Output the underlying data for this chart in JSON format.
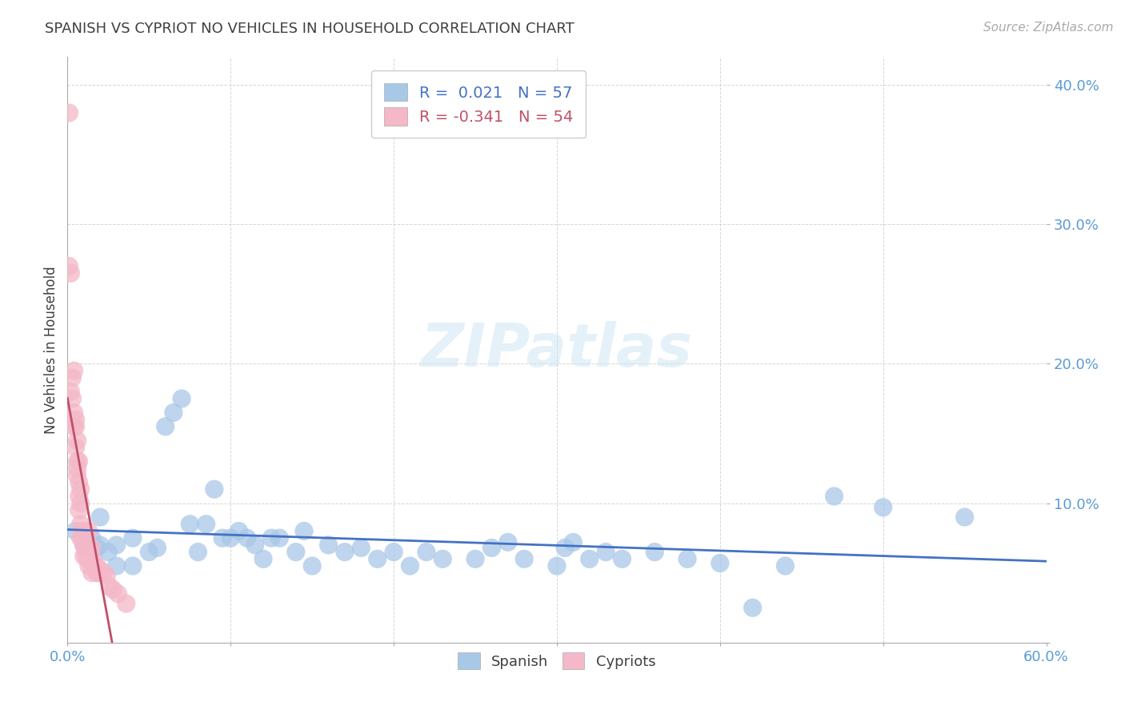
{
  "title": "SPANISH VS CYPRIOT NO VEHICLES IN HOUSEHOLD CORRELATION CHART",
  "source": "Source: ZipAtlas.com",
  "ylabel_label": "No Vehicles in Household",
  "xlim": [
    0.0,
    0.6
  ],
  "ylim": [
    0.0,
    0.42
  ],
  "xticks": [
    0.0,
    0.6
  ],
  "yticks": [
    0.1,
    0.2,
    0.3,
    0.4
  ],
  "xtick_labels": [
    "0.0%",
    "60.0%"
  ],
  "ytick_labels": [
    "10.0%",
    "20.0%",
    "30.0%",
    "40.0%"
  ],
  "legend_r_spanish": "R =  0.021",
  "legend_n_spanish": "N = 57",
  "legend_r_cypriot": "R = -0.341",
  "legend_n_cypriot": "N = 54",
  "spanish_color": "#a8c8e8",
  "cypriot_color": "#f4b8c8",
  "spanish_line_color": "#4472c4",
  "cypriot_line_color": "#c0506a",
  "background_color": "#ffffff",
  "grid_color": "#cccccc",
  "title_color": "#404040",
  "axis_label_color": "#404040",
  "tick_color": "#5b9bd5",
  "watermark": "ZIPatlas",
  "spanish_x": [
    0.005,
    0.01,
    0.015,
    0.018,
    0.02,
    0.02,
    0.025,
    0.03,
    0.03,
    0.04,
    0.04,
    0.05,
    0.055,
    0.06,
    0.065,
    0.07,
    0.075,
    0.08,
    0.085,
    0.09,
    0.095,
    0.1,
    0.105,
    0.11,
    0.115,
    0.12,
    0.125,
    0.13,
    0.14,
    0.145,
    0.15,
    0.16,
    0.17,
    0.18,
    0.19,
    0.2,
    0.21,
    0.22,
    0.23,
    0.25,
    0.26,
    0.27,
    0.28,
    0.3,
    0.305,
    0.31,
    0.32,
    0.33,
    0.34,
    0.36,
    0.38,
    0.4,
    0.42,
    0.44,
    0.47,
    0.5,
    0.55
  ],
  "spanish_y": [
    0.08,
    0.07,
    0.075,
    0.068,
    0.07,
    0.09,
    0.065,
    0.055,
    0.07,
    0.075,
    0.055,
    0.065,
    0.068,
    0.155,
    0.165,
    0.175,
    0.085,
    0.065,
    0.085,
    0.11,
    0.075,
    0.075,
    0.08,
    0.075,
    0.07,
    0.06,
    0.075,
    0.075,
    0.065,
    0.08,
    0.055,
    0.07,
    0.065,
    0.068,
    0.06,
    0.065,
    0.055,
    0.065,
    0.06,
    0.06,
    0.068,
    0.072,
    0.06,
    0.055,
    0.068,
    0.072,
    0.06,
    0.065,
    0.06,
    0.065,
    0.06,
    0.057,
    0.025,
    0.055,
    0.105,
    0.097,
    0.09
  ],
  "cypriot_x": [
    0.001,
    0.001,
    0.002,
    0.002,
    0.003,
    0.003,
    0.004,
    0.004,
    0.004,
    0.005,
    0.005,
    0.005,
    0.006,
    0.006,
    0.006,
    0.006,
    0.007,
    0.007,
    0.007,
    0.007,
    0.008,
    0.008,
    0.008,
    0.008,
    0.009,
    0.009,
    0.01,
    0.01,
    0.01,
    0.01,
    0.011,
    0.011,
    0.012,
    0.012,
    0.013,
    0.013,
    0.013,
    0.014,
    0.014,
    0.015,
    0.015,
    0.016,
    0.016,
    0.017,
    0.018,
    0.018,
    0.019,
    0.02,
    0.022,
    0.024,
    0.026,
    0.028,
    0.031,
    0.036
  ],
  "cypriot_y": [
    0.38,
    0.27,
    0.265,
    0.18,
    0.19,
    0.175,
    0.195,
    0.165,
    0.155,
    0.155,
    0.14,
    0.16,
    0.12,
    0.13,
    0.145,
    0.125,
    0.13,
    0.115,
    0.105,
    0.095,
    0.11,
    0.085,
    0.075,
    0.1,
    0.075,
    0.08,
    0.075,
    0.08,
    0.062,
    0.07,
    0.065,
    0.075,
    0.06,
    0.065,
    0.055,
    0.065,
    0.08,
    0.06,
    0.065,
    0.05,
    0.068,
    0.055,
    0.058,
    0.052,
    0.05,
    0.055,
    0.05,
    0.052,
    0.05,
    0.048,
    0.04,
    0.038,
    0.035,
    0.028
  ]
}
